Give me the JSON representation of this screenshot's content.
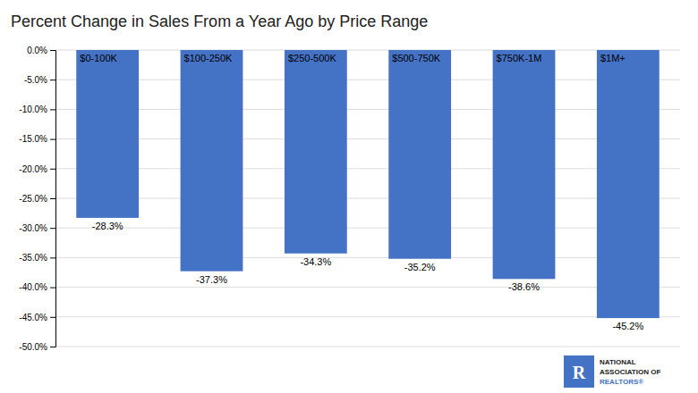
{
  "chart_data": {
    "type": "bar",
    "title": "Percent Change in Sales From a Year Ago by Price Range",
    "categories": [
      "$0-100K",
      "$100-250K",
      "$250-500K",
      "$500-750K",
      "$750K-1M",
      "$1M+"
    ],
    "values": [
      -28.3,
      -37.3,
      -34.3,
      -35.2,
      -38.6,
      -45.2
    ],
    "value_labels": [
      "-28.3%",
      "-37.3%",
      "-34.3%",
      "-35.2%",
      "-38.6%",
      "-45.2%"
    ],
    "data_labels": true,
    "color": "#4472C4",
    "ylim": [
      -50,
      0
    ],
    "yticks": [
      {
        "value": 0,
        "label": "0.0%"
      },
      {
        "value": -5,
        "label": "-5.0%"
      },
      {
        "value": -10,
        "label": "-10.0%"
      },
      {
        "value": -15,
        "label": "-15.0%"
      },
      {
        "value": -20,
        "label": "-20.0%"
      },
      {
        "value": -25,
        "label": "-25.0%"
      },
      {
        "value": -30,
        "label": "-30.0%"
      },
      {
        "value": -35,
        "label": "-35.0%"
      },
      {
        "value": -40,
        "label": "-40.0%"
      },
      {
        "value": -45,
        "label": "-45.0%"
      },
      {
        "value": -50,
        "label": "-50.0%"
      }
    ],
    "grid": true,
    "annotations": [
      "R",
      "NATIONAL",
      "ASSOCIATION OF",
      "REALTORS®"
    ]
  }
}
